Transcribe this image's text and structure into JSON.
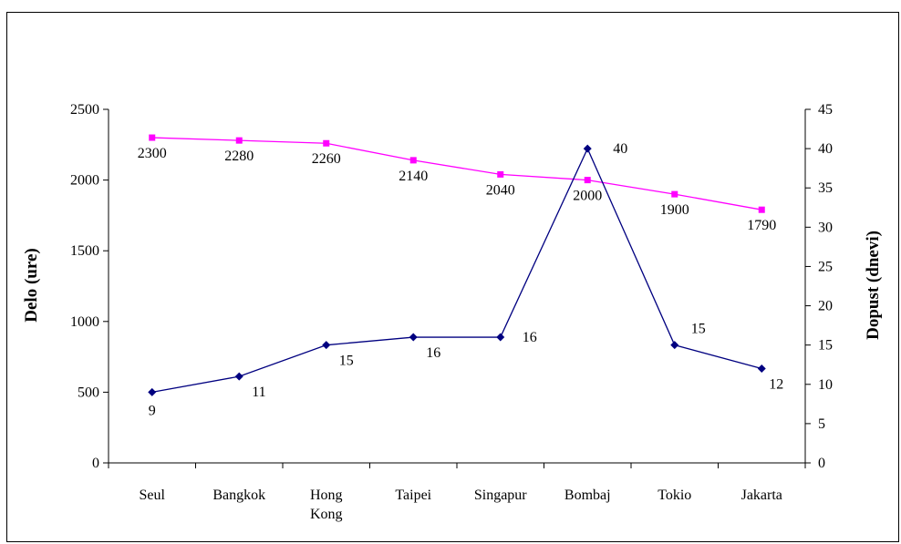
{
  "chart_data": {
    "type": "line",
    "categories": [
      "Seul",
      "Bangkok",
      "Hong Kong",
      "Taipei",
      "Singapur",
      "Bombaj",
      "Tokio",
      "Jakarta"
    ],
    "category_lines": [
      [
        "Seul"
      ],
      [
        "Bangkok"
      ],
      [
        "Hong",
        "Kong"
      ],
      [
        "Taipei"
      ],
      [
        "Singapur"
      ],
      [
        "Bombaj"
      ],
      [
        "Tokio"
      ],
      [
        "Jakarta"
      ]
    ],
    "y_left": {
      "label": "Delo (ure)",
      "ylim": [
        0,
        2500
      ],
      "ticks": [
        0,
        500,
        1000,
        1500,
        2000,
        2500
      ]
    },
    "y_right": {
      "label": "Dopust (dnevi)",
      "ylim": [
        0,
        45
      ],
      "ticks": [
        0,
        5,
        10,
        15,
        20,
        25,
        30,
        35,
        40,
        45
      ]
    },
    "series": [
      {
        "axis": "left",
        "color": "#FF00FF",
        "marker": "square",
        "values": [
          2300,
          2280,
          2260,
          2140,
          2040,
          2000,
          1900,
          1790
        ]
      },
      {
        "axis": "right",
        "color": "#000080",
        "marker": "diamond",
        "values": [
          9,
          11,
          15,
          16,
          16,
          40,
          15,
          12
        ]
      }
    ],
    "grid": false,
    "legend": "none"
  }
}
